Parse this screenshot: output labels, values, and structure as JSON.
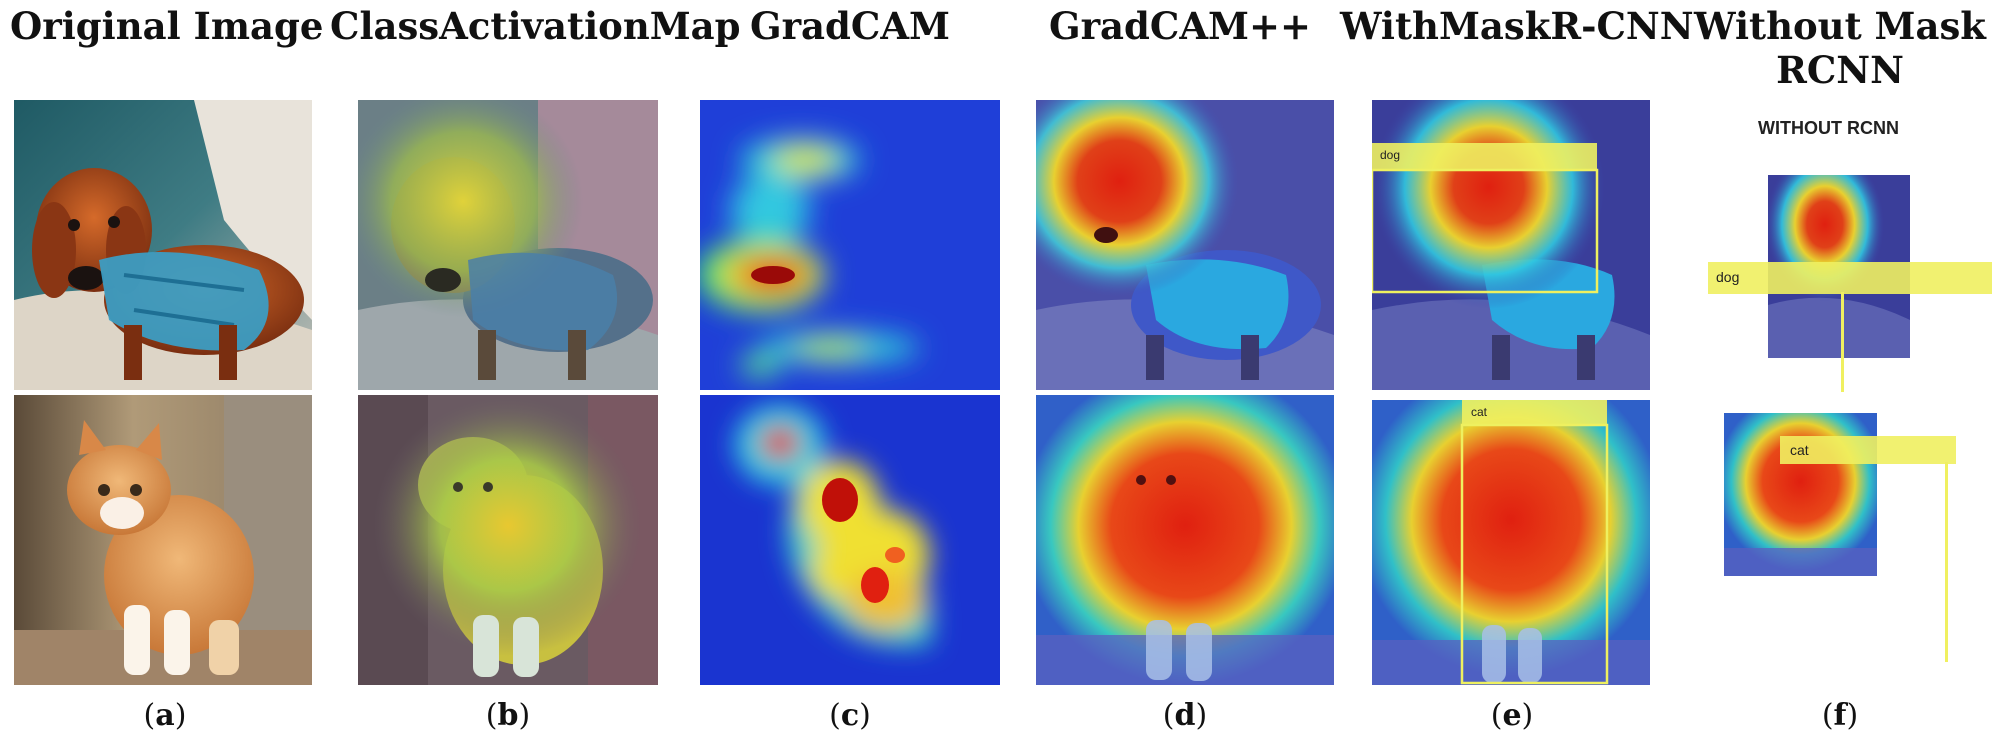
{
  "columns": [
    {
      "title": "Original Image",
      "caption": "a"
    },
    {
      "title": "ClassActivationMap",
      "caption": "b"
    },
    {
      "title": "GradCAM",
      "caption": "c"
    },
    {
      "title": "GradCAM++",
      "caption": "d"
    },
    {
      "title": "WithMaskR-CNN",
      "caption": "e"
    },
    {
      "title_line1": "Without Mask",
      "title_line2": "RCNN",
      "caption": "f"
    }
  ],
  "inset_title": "WITHOUT RCNN",
  "labels": {
    "dog": "dog",
    "cat": "cat"
  },
  "colors": {
    "heat_red": "#e02010",
    "heat_yellow": "#f2f020",
    "heat_blue": "#1a2fd0",
    "bbox": "#f0f05a"
  }
}
